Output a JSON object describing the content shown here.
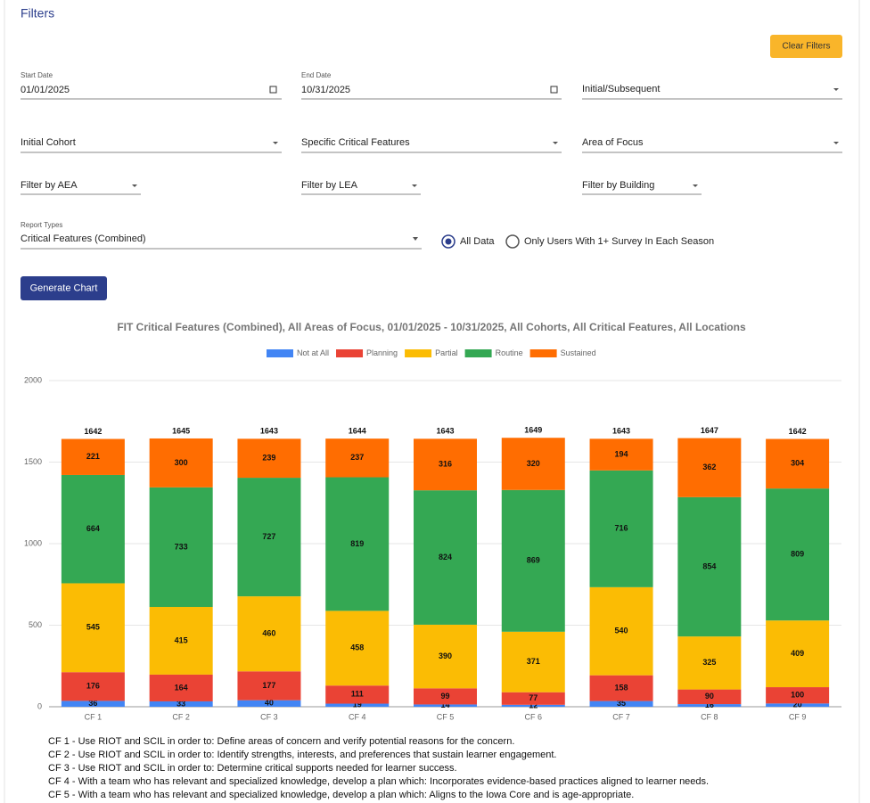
{
  "header": {
    "title": "Filters"
  },
  "clear_button": "Clear Filters",
  "start_date": {
    "label": "Start Date",
    "value": "01/01/2025"
  },
  "end_date": {
    "label": "End Date",
    "value": "10/31/2025"
  },
  "dropdowns": [
    "Initial/Subsequent",
    "Initial Cohort",
    "Specific Critical Features",
    "Area of Focus",
    "Filter by AEA",
    "Filter by LEA",
    "Filter by Building"
  ],
  "report_types": {
    "label": "Report Types",
    "value": "Critical Features (Combined)"
  },
  "radios": [
    {
      "label": "All Data",
      "checked": true
    },
    {
      "label": "Only Users With 1+ Survey In Each Season",
      "checked": false
    }
  ],
  "generate_button": "Generate Chart",
  "chart_data": {
    "type": "stacked_bar",
    "title": "FIT Critical Features (Combined), All Areas of Focus, 01/01/2025 - 10/31/2025, All Cohorts, All Critical Features, All Locations",
    "categories": [
      "CF 1",
      "CF 2",
      "CF 3",
      "CF 4",
      "CF 5",
      "CF 6",
      "CF 7",
      "CF 8",
      "CF 9"
    ],
    "series": [
      {
        "name": "Not at All",
        "color": "#4285f4",
        "values": [
          36,
          33,
          40,
          19,
          14,
          12,
          35,
          16,
          20
        ]
      },
      {
        "name": "Planning",
        "color": "#ea4335",
        "values": [
          176,
          164,
          177,
          111,
          99,
          77,
          158,
          90,
          100
        ]
      },
      {
        "name": "Partial",
        "color": "#fbbc04",
        "values": [
          545,
          415,
          460,
          458,
          390,
          371,
          540,
          325,
          409
        ]
      },
      {
        "name": "Routine",
        "color": "#34a853",
        "values": [
          664,
          733,
          727,
          819,
          824,
          869,
          716,
          854,
          809
        ]
      },
      {
        "name": "Sustained",
        "color": "#ff6d01",
        "values": [
          221,
          300,
          239,
          237,
          316,
          320,
          194,
          362,
          304
        ]
      }
    ],
    "totals": [
      1642,
      1645,
      1643,
      1644,
      1643,
      1649,
      1643,
      1647,
      1642
    ],
    "ylim": [
      0,
      2000
    ],
    "yticks": [
      0,
      500,
      1000,
      1500,
      2000
    ],
    "grid": true,
    "legend": "top"
  },
  "footnotes": [
    "CF 1 - Use RIOT and SCIL in order to: Define areas of concern and verify potential reasons for the concern.",
    "CF 2 - Use RIOT and SCIL in order to: Identify strengths, interests, and preferences that sustain learner engagement.",
    "CF 3 - Use RIOT and SCIL in order to: Determine critical supports needed for learner success.",
    "CF 4 - With a team who has relevant and specialized knowledge, develop a plan which: Incorporates evidence-based practices aligned to learner needs.",
    "CF 5 - With a team who has relevant and specialized knowledge, develop a plan which: Aligns to the Iowa Core and is age-appropriate."
  ]
}
